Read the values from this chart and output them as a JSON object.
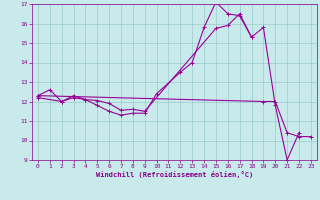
{
  "xlabel": "Windchill (Refroidissement éolien,°C)",
  "xlim": [
    -0.5,
    23.5
  ],
  "ylim": [
    9,
    17
  ],
  "yticks": [
    9,
    10,
    11,
    12,
    13,
    14,
    15,
    16,
    17
  ],
  "xticks": [
    0,
    1,
    2,
    3,
    4,
    5,
    6,
    7,
    8,
    9,
    10,
    11,
    12,
    13,
    14,
    15,
    16,
    17,
    18,
    19,
    20,
    21,
    22,
    23
  ],
  "bg_color": "#c8eaea",
  "grid_color": "#99cccc",
  "line_color": "#990099",
  "seg1": {
    "x": [
      0,
      1,
      2,
      3,
      4,
      5,
      6,
      7,
      8,
      9,
      10,
      12,
      13,
      14,
      15,
      16,
      17,
      18,
      19,
      20,
      21,
      22
    ],
    "y": [
      12.3,
      12.6,
      12.0,
      12.2,
      12.1,
      11.8,
      11.5,
      11.3,
      11.4,
      11.4,
      12.4,
      13.5,
      14.0,
      15.8,
      17.1,
      16.5,
      16.4,
      15.3,
      15.8,
      11.8,
      9.0,
      10.4
    ]
  },
  "seg2": {
    "x": [
      0,
      2,
      3,
      4,
      5,
      6,
      7,
      8,
      9,
      15,
      16,
      17,
      18
    ],
    "y": [
      12.2,
      12.0,
      12.3,
      12.1,
      12.05,
      11.9,
      11.55,
      11.6,
      11.5,
      15.75,
      15.9,
      16.5,
      15.3
    ]
  },
  "seg3": {
    "x": [
      0,
      19,
      20,
      21,
      22,
      23
    ],
    "y": [
      12.3,
      12.0,
      12.0,
      10.4,
      10.2,
      10.2
    ]
  }
}
